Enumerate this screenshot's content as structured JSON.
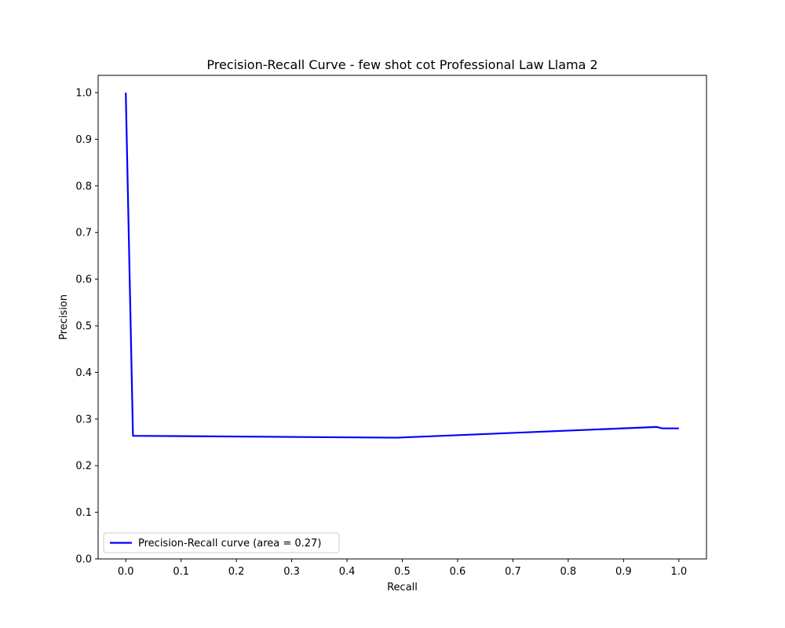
{
  "chart_data": {
    "type": "line",
    "title": "Precision-Recall Curve - few shot cot Professional Law Llama 2",
    "xlabel": "Recall",
    "ylabel": "Precision",
    "xlim": [
      -0.05,
      1.05
    ],
    "ylim": [
      0.0,
      1.037
    ],
    "xticks": [
      "0.0",
      "0.1",
      "0.2",
      "0.3",
      "0.4",
      "0.5",
      "0.6",
      "0.7",
      "0.8",
      "0.9",
      "1.0"
    ],
    "yticks": [
      "0.0",
      "0.1",
      "0.2",
      "0.3",
      "0.4",
      "0.5",
      "0.6",
      "0.7",
      "0.8",
      "0.9",
      "1.0"
    ],
    "grid": false,
    "legend_position": "lower-left",
    "series": [
      {
        "name": "Precision-Recall curve (area = 0.27)",
        "color": "#0000ff",
        "x": [
          0.0,
          0.013,
          0.49,
          0.96,
          0.97,
          1.0
        ],
        "y": [
          1.0,
          0.264,
          0.26,
          0.283,
          0.28,
          0.28
        ]
      }
    ]
  }
}
